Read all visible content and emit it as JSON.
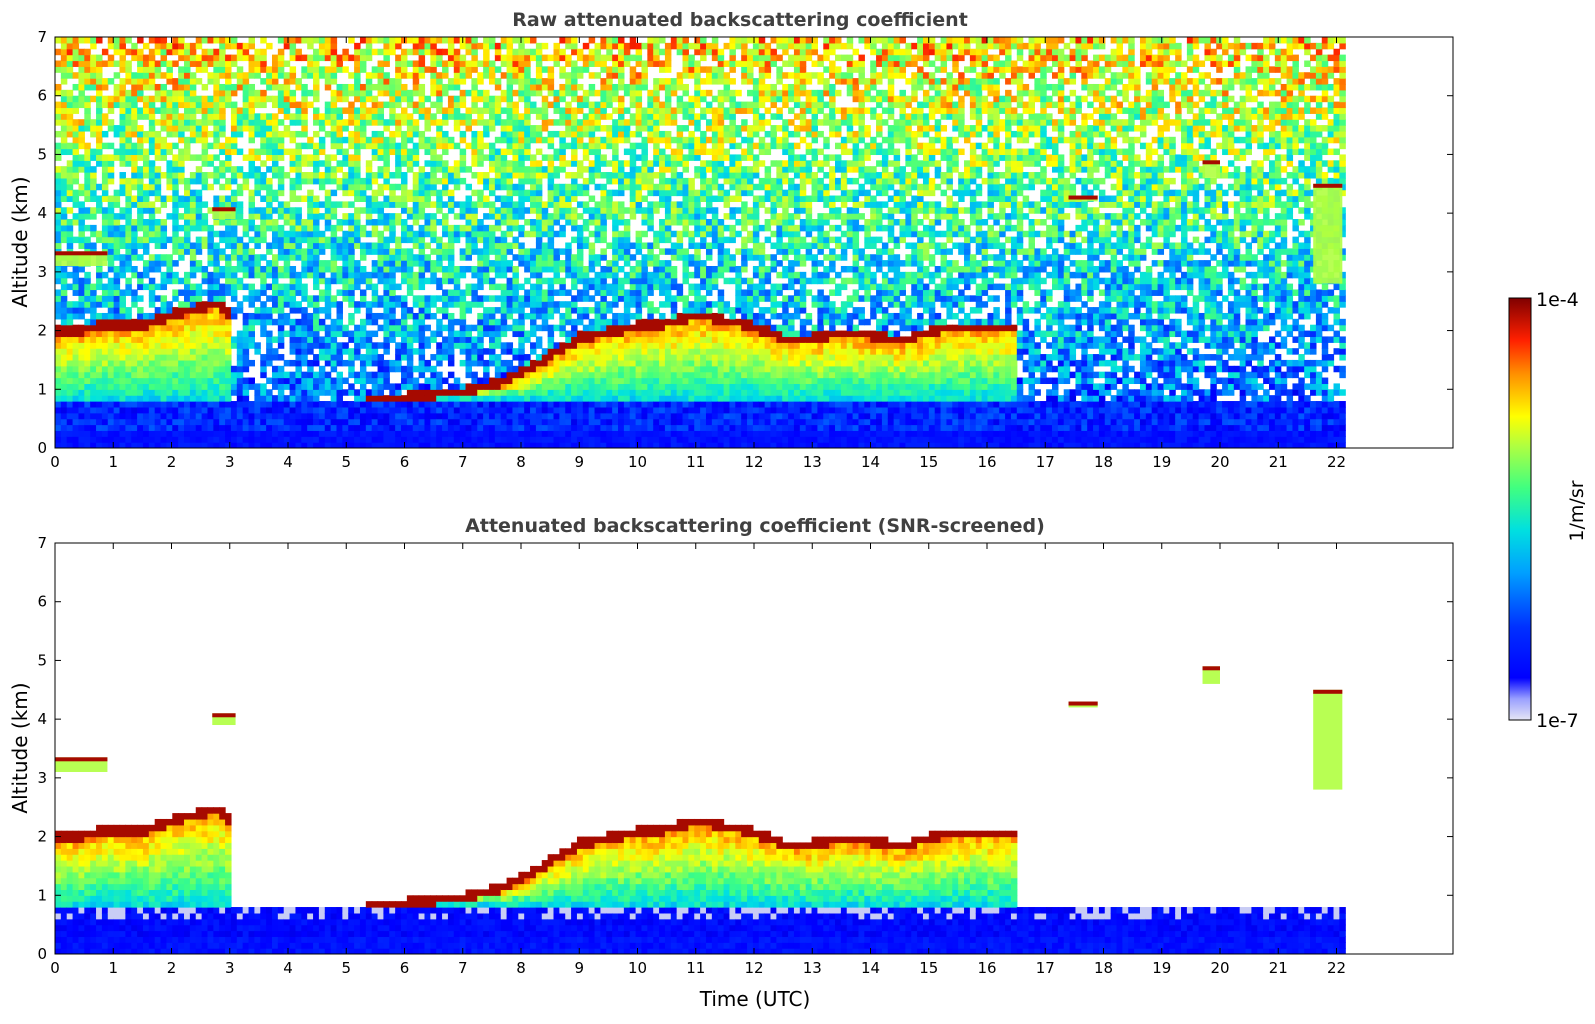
{
  "chart_data": [
    {
      "type": "heatmap",
      "title": "Raw attenuated backscattering coefficient",
      "xlabel": "",
      "ylabel": "Altitude (km)",
      "xlim": [
        0,
        24
      ],
      "ylim": [
        0,
        7
      ],
      "xticks": [
        0,
        1,
        2,
        3,
        4,
        5,
        6,
        7,
        8,
        9,
        10,
        11,
        12,
        13,
        14,
        15,
        16,
        17,
        18,
        19,
        20,
        21,
        22
      ],
      "yticks": [
        0,
        1,
        2,
        3,
        4,
        5,
        6,
        7
      ],
      "data_end_time": 22.15,
      "screened": false,
      "boundary_layer_top_km": [
        [
          0,
          1.9
        ],
        [
          0.5,
          1.95
        ],
        [
          1,
          2.05
        ],
        [
          1.5,
          2.0
        ],
        [
          2,
          2.2
        ],
        [
          2.4,
          2.3
        ],
        [
          2.8,
          2.4
        ],
        [
          3.0,
          2.2
        ],
        [
          5.3,
          0.8
        ],
        [
          6,
          0.8
        ],
        [
          7,
          0.9
        ],
        [
          7.5,
          1.0
        ],
        [
          8,
          1.2
        ],
        [
          8.5,
          1.5
        ],
        [
          9,
          1.8
        ],
        [
          9.5,
          1.9
        ],
        [
          10,
          2.0
        ],
        [
          10.5,
          2.05
        ],
        [
          11,
          2.2
        ],
        [
          11.5,
          2.1
        ],
        [
          12,
          2.0
        ],
        [
          12.5,
          1.8
        ],
        [
          13,
          1.8
        ],
        [
          13.5,
          1.9
        ],
        [
          14,
          1.85
        ],
        [
          14.5,
          1.75
        ],
        [
          15,
          1.9
        ],
        [
          15.5,
          2.0
        ],
        [
          16,
          2.0
        ],
        [
          16.5,
          2.0
        ]
      ],
      "cloud_patches": [
        {
          "x": 0.0,
          "x2": 0.9,
          "y": 3.1,
          "y2": 3.35
        },
        {
          "x": 2.7,
          "x2": 3.1,
          "y": 3.9,
          "y2": 4.1
        },
        {
          "x": 17.4,
          "x2": 17.9,
          "y": 4.2,
          "y2": 4.3
        },
        {
          "x": 19.7,
          "x2": 20.0,
          "y": 4.6,
          "y2": 4.9
        },
        {
          "x": 21.6,
          "x2": 22.1,
          "y": 2.8,
          "y2": 4.5
        }
      ],
      "colorbar": {
        "min_label": "1e-7",
        "max_label": "1e-4",
        "label": "1/m/sr",
        "scale": "log"
      }
    },
    {
      "type": "heatmap",
      "title": "Attenuated backscattering coefficient (SNR-screened)",
      "xlabel": "Time (UTC)",
      "ylabel": "Altitude (km)",
      "xlim": [
        0,
        24
      ],
      "ylim": [
        0,
        7
      ],
      "xticks": [
        0,
        1,
        2,
        3,
        4,
        5,
        6,
        7,
        8,
        9,
        10,
        11,
        12,
        13,
        14,
        15,
        16,
        17,
        18,
        19,
        20,
        21,
        22
      ],
      "yticks": [
        0,
        1,
        2,
        3,
        4,
        5,
        6,
        7
      ],
      "data_end_time": 22.15,
      "screened": true
    }
  ],
  "colorbar": {
    "max_label": "1e-4",
    "min_label": "1e-7",
    "unit_label": "1/m/sr",
    "colormap": "jet"
  },
  "colors": {
    "near_surface": "#0a1ee0",
    "boundary_layer": "#ff8c00",
    "pbl_top": "#8b0000",
    "background_noise": "#9ad8e6"
  }
}
